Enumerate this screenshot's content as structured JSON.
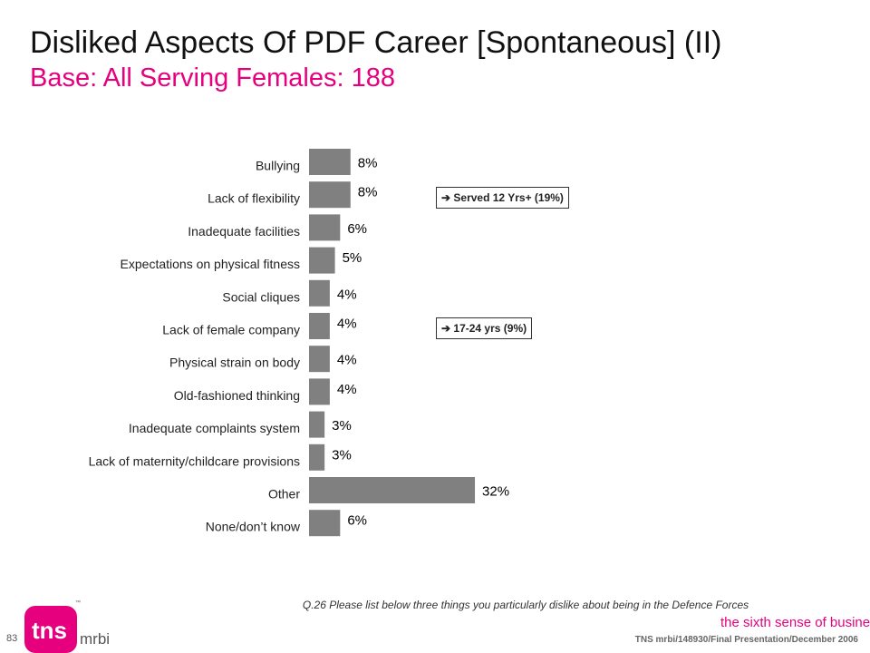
{
  "header": {
    "title": "Disliked  Aspects Of PDF Career [Spontaneous] (II)",
    "subtitle": "Base:  All Serving Females:  188"
  },
  "chart_data": {
    "type": "bar",
    "orientation": "horizontal",
    "categories": [
      "Bullying",
      "Lack of flexibility",
      "Inadequate facilities",
      "Expectations on physical fitness",
      "Social cliques",
      "Lack of female company",
      "Physical strain on body",
      "Old-fashioned thinking",
      "Inadequate complaints system",
      "Lack of maternity/childcare provisions",
      "Other",
      "None/don’t know"
    ],
    "values": [
      8,
      8,
      6,
      5,
      4,
      4,
      4,
      4,
      3,
      3,
      32,
      6
    ],
    "value_labels": [
      "8%",
      "8%",
      "6%",
      "5%",
      "4%",
      "4%",
      "4%",
      "4%",
      "3%",
      "3%",
      "32%",
      "6%"
    ],
    "bar_color": "#808080",
    "grid": false
  },
  "callouts": [
    {
      "text": "Served 12 Yrs+ (19%)",
      "category_index": 1
    },
    {
      "text": "17-24 yrs (9%)",
      "category_index": 5
    }
  ],
  "footer": {
    "question": "Q.26  Please list below three things you particularly dislike about being in the Defence Forces",
    "page_number": "83",
    "source": "TNS mrbi/148930/Final Presentation/December 2006",
    "tagline": "the sixth sense of business",
    "tagline_tm": "™"
  },
  "logo": {
    "text_main": "tns",
    "text_sub": "mrbi",
    "tm": "™",
    "color": "#e6007e"
  },
  "icons": {
    "callout_arrow": "arrow-right-icon"
  }
}
